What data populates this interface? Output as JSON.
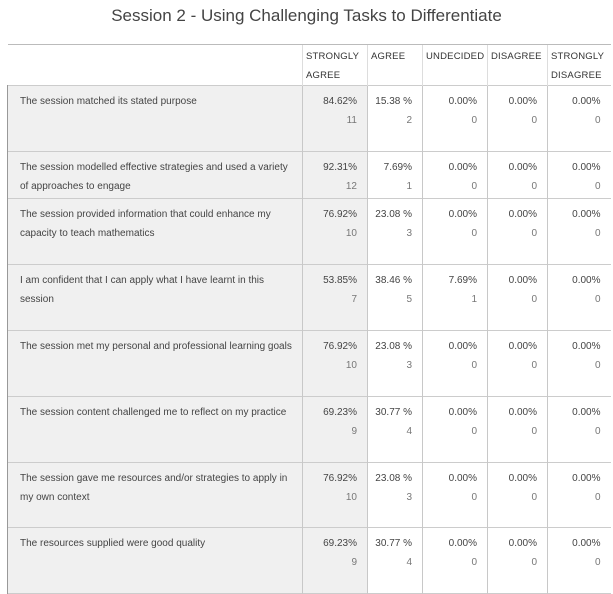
{
  "title": "Session 2 - Using Challenging Tasks to Differentiate",
  "columns": [
    "",
    "STRONGLY AGREE",
    "AGREE",
    "UNDECIDED",
    "DISAGREE",
    "STRONGLY DISAGREE"
  ],
  "rows": [
    {
      "question": "The session matched its stated purpose",
      "cells": [
        {
          "pct": "84.62%",
          "n": "11"
        },
        {
          "pct": "15.38 %",
          "n": "2"
        },
        {
          "pct": "0.00%",
          "n": "0"
        },
        {
          "pct": "0.00%",
          "n": "0"
        },
        {
          "pct": "0.00%",
          "n": "0"
        }
      ]
    },
    {
      "question": "The session modelled effective strategies and used a variety of approaches to engage",
      "cells": [
        {
          "pct": "92.31%",
          "n": "12"
        },
        {
          "pct": "7.69%",
          "n": "1"
        },
        {
          "pct": "0.00%",
          "n": "0"
        },
        {
          "pct": "0.00%",
          "n": "0"
        },
        {
          "pct": "0.00%",
          "n": "0"
        }
      ]
    },
    {
      "question": "The session provided information that could enhance my capacity to teach mathematics",
      "cells": [
        {
          "pct": "76.92%",
          "n": "10"
        },
        {
          "pct": "23.08 %",
          "n": "3"
        },
        {
          "pct": "0.00%",
          "n": "0"
        },
        {
          "pct": "0.00%",
          "n": "0"
        },
        {
          "pct": "0.00%",
          "n": "0"
        }
      ]
    },
    {
      "question": "I am confident that I can apply what I have learnt in this session",
      "cells": [
        {
          "pct": "53.85%",
          "n": "7"
        },
        {
          "pct": "38.46 %",
          "n": "5"
        },
        {
          "pct": "7.69%",
          "n": "1"
        },
        {
          "pct": "0.00%",
          "n": "0"
        },
        {
          "pct": "0.00%",
          "n": "0"
        }
      ]
    },
    {
      "question": "The session met my personal and professional learning goals",
      "cells": [
        {
          "pct": "76.92%",
          "n": "10"
        },
        {
          "pct": "23.08 %",
          "n": "3"
        },
        {
          "pct": "0.00%",
          "n": "0"
        },
        {
          "pct": "0.00%",
          "n": "0"
        },
        {
          "pct": "0.00%",
          "n": "0"
        }
      ]
    },
    {
      "question": "The session content challenged me to reflect on my practice",
      "cells": [
        {
          "pct": "69.23%",
          "n": "9"
        },
        {
          "pct": "30.77 %",
          "n": "4"
        },
        {
          "pct": "0.00%",
          "n": "0"
        },
        {
          "pct": "0.00%",
          "n": "0"
        },
        {
          "pct": "0.00%",
          "n": "0"
        }
      ]
    },
    {
      "question": "The session gave me resources and/or strategies to apply in my own context",
      "cells": [
        {
          "pct": "76.92%",
          "n": "10"
        },
        {
          "pct": "23.08 %",
          "n": "3"
        },
        {
          "pct": "0.00%",
          "n": "0"
        },
        {
          "pct": "0.00%",
          "n": "0"
        },
        {
          "pct": "0.00%",
          "n": "0"
        }
      ]
    },
    {
      "question": "The resources supplied were good quality",
      "cells": [
        {
          "pct": "69.23%",
          "n": "9"
        },
        {
          "pct": "30.77 %",
          "n": "4"
        },
        {
          "pct": "0.00%",
          "n": "0"
        },
        {
          "pct": "0.00%",
          "n": "0"
        },
        {
          "pct": "0.00%",
          "n": "0"
        }
      ]
    }
  ]
}
